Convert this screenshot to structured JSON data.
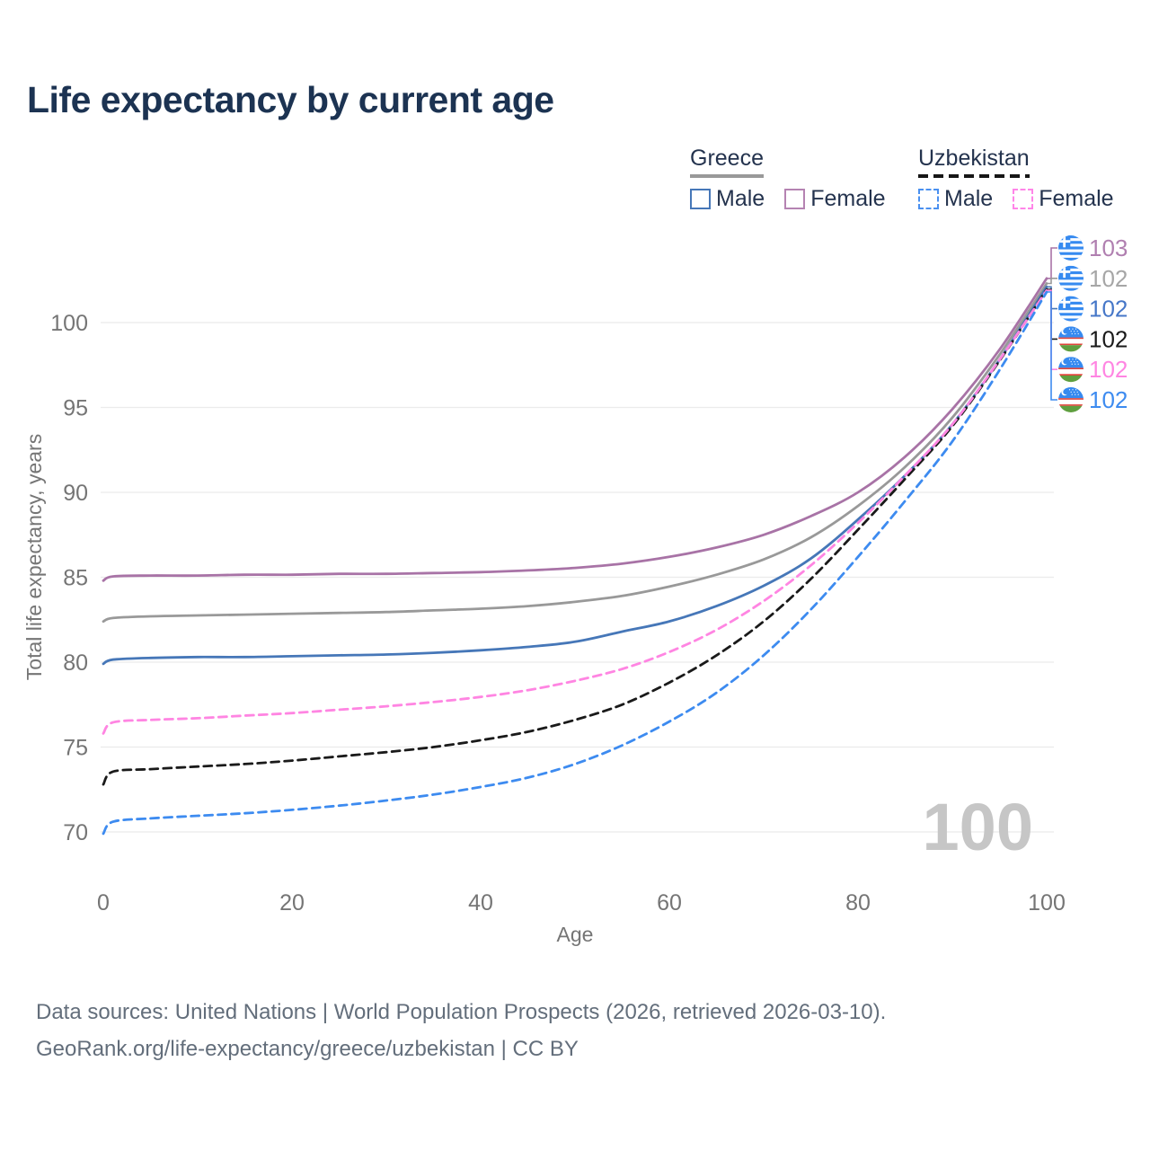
{
  "title": "Life expectancy by current age",
  "watermark": "100",
  "legend": {
    "groups": [
      {
        "name": "Greece",
        "line_style": "solid",
        "underline_color": "#999999",
        "items": [
          {
            "label": "Male",
            "color": "#4677b8",
            "dashed": false
          },
          {
            "label": "Female",
            "color": "#b583b2",
            "dashed": false
          }
        ]
      },
      {
        "name": "Uzbekistan",
        "line_style": "dashed",
        "underline_color": "#161616",
        "items": [
          {
            "label": "Male",
            "color": "#4a90f0",
            "dashed": true
          },
          {
            "label": "Female",
            "color": "#ff85e8",
            "dashed": true
          }
        ]
      }
    ]
  },
  "chart_data": {
    "type": "line",
    "title": "Life expectancy by current age",
    "xlabel": "Age",
    "ylabel": "Total life expectancy, years",
    "xlim": [
      0,
      100
    ],
    "ylim": [
      68,
      105
    ],
    "xticks": [
      0,
      20,
      40,
      60,
      80,
      100
    ],
    "yticks": [
      70,
      75,
      80,
      85,
      90,
      95,
      100
    ],
    "grid": true,
    "legend_position": "top-right",
    "x": [
      0,
      1,
      5,
      10,
      15,
      20,
      25,
      30,
      35,
      40,
      45,
      50,
      55,
      60,
      65,
      70,
      75,
      80,
      85,
      90,
      95,
      100
    ],
    "series": [
      {
        "id": "greece-female",
        "country": "Greece",
        "sex": "Female",
        "color": "#a873a6",
        "dashed": false,
        "values": [
          84.8,
          85.05,
          85.1,
          85.1,
          85.15,
          85.15,
          85.2,
          85.2,
          85.25,
          85.3,
          85.4,
          85.55,
          85.8,
          86.2,
          86.75,
          87.5,
          88.6,
          90.0,
          92.1,
          94.9,
          98.4,
          102.6
        ],
        "end_label": {
          "value": "103",
          "row": 0,
          "flag": "greece",
          "color": "#b07fb0"
        }
      },
      {
        "id": "greece-total",
        "country": "Greece",
        "sex": "All",
        "color": "#999999",
        "dashed": false,
        "values": [
          82.4,
          82.6,
          82.7,
          82.75,
          82.8,
          82.85,
          82.9,
          82.95,
          83.05,
          83.15,
          83.3,
          83.55,
          83.9,
          84.45,
          85.15,
          86.05,
          87.35,
          89.2,
          91.5,
          94.4,
          98.1,
          102.3
        ],
        "end_label": {
          "value": "102",
          "row": 1,
          "flag": "greece",
          "color": "#a6a6a6"
        }
      },
      {
        "id": "greece-male",
        "country": "Greece",
        "sex": "Male",
        "color": "#4677b8",
        "dashed": false,
        "values": [
          79.9,
          80.15,
          80.25,
          80.3,
          80.3,
          80.35,
          80.4,
          80.45,
          80.55,
          80.7,
          80.9,
          81.2,
          81.8,
          82.4,
          83.3,
          84.5,
          86.1,
          88.4,
          91.0,
          94.0,
          97.8,
          102.1
        ],
        "end_label": {
          "value": "102",
          "row": 2,
          "flag": "greece",
          "color": "#4677c8"
        }
      },
      {
        "id": "uzbekistan-total",
        "country": "Uzbekistan",
        "sex": "All",
        "color": "#1a1a1a",
        "dashed": true,
        "values": [
          72.8,
          73.55,
          73.7,
          73.85,
          74.0,
          74.2,
          74.45,
          74.7,
          75.0,
          75.4,
          75.9,
          76.6,
          77.5,
          78.8,
          80.4,
          82.4,
          84.9,
          87.8,
          90.8,
          93.9,
          97.75,
          101.95
        ],
        "end_label": {
          "value": "102",
          "row": 3,
          "flag": "uzbekistan",
          "color": "#1a1a1a"
        }
      },
      {
        "id": "uzbekistan-female",
        "country": "Uzbekistan",
        "sex": "Female",
        "color": "#ff85e2",
        "dashed": true,
        "values": [
          75.8,
          76.45,
          76.6,
          76.7,
          76.85,
          77.0,
          77.2,
          77.4,
          77.65,
          77.95,
          78.35,
          78.9,
          79.6,
          80.6,
          81.9,
          83.6,
          85.7,
          88.2,
          91.0,
          94.0,
          97.8,
          101.9
        ],
        "end_label": {
          "value": "102",
          "row": 4,
          "flag": "uzbekistan",
          "color": "#ff85e2"
        }
      },
      {
        "id": "uzbekistan-male",
        "country": "Uzbekistan",
        "sex": "Male",
        "color": "#3d8bf0",
        "dashed": true,
        "values": [
          69.9,
          70.6,
          70.8,
          70.95,
          71.1,
          71.3,
          71.55,
          71.85,
          72.2,
          72.65,
          73.2,
          74.0,
          75.1,
          76.5,
          78.2,
          80.4,
          83.1,
          86.2,
          89.5,
          93.0,
          97.2,
          101.8
        ],
        "end_label": {
          "value": "102",
          "row": 5,
          "flag": "uzbekistan",
          "color": "#3d8bf0"
        }
      }
    ]
  },
  "footer": {
    "line1": "Data sources: United Nations | World Population Prospects (2026, retrieved 2026-03-10).",
    "line2": "GeoRank.org/life-expectancy/greece/uzbekistan | CC BY"
  }
}
